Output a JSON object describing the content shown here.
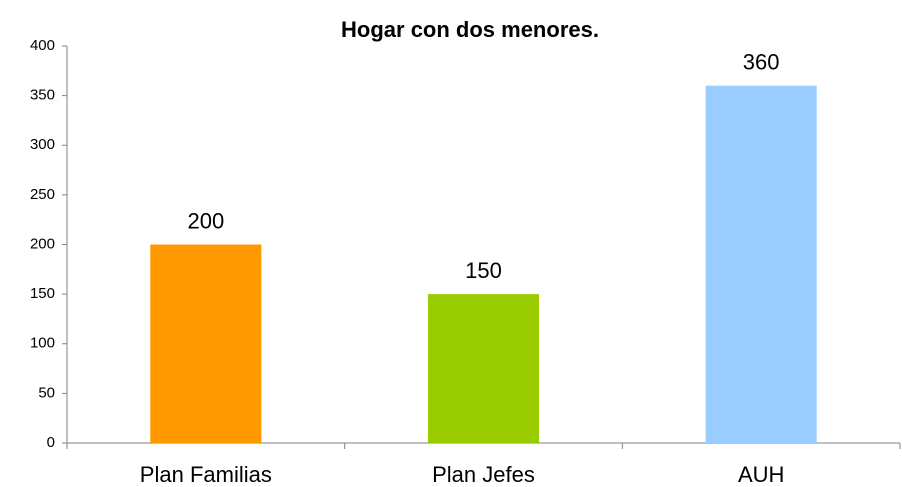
{
  "chart_data": {
    "type": "bar",
    "title": "Hogar con dos menores.",
    "categories": [
      "Plan Familias",
      "Plan Jefes",
      "AUH"
    ],
    "values": [
      200,
      150,
      360
    ],
    "colors": [
      "#ff9900",
      "#99cc00",
      "#99ccff"
    ],
    "ylim": [
      0,
      400
    ],
    "yticks": [
      0,
      50,
      100,
      150,
      200,
      250,
      300,
      350,
      400
    ],
    "grid": false
  }
}
